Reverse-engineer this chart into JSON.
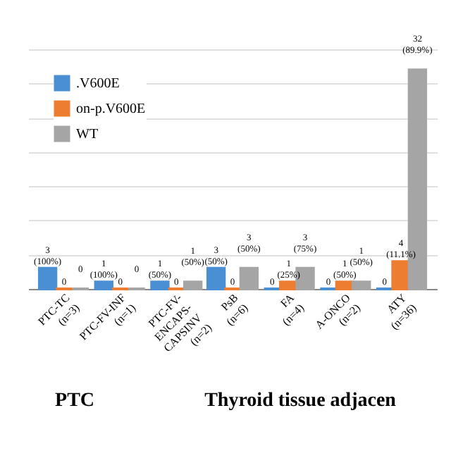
{
  "chart_data": {
    "type": "bar",
    "categories": [
      "PTC-TC (n=3)",
      "PTC-FV-INF (n=1)",
      "PTC-FV-ENCAPS-CAPSINV (n=2)",
      "PsB (n=6)",
      "FA (n=4)",
      "A-ONCO (n=2)",
      "ATY (n=36)"
    ],
    "series": [
      {
        "name": ".V600E",
        "color": "#4a8fd4",
        "values": [
          3,
          1,
          1,
          3,
          0,
          0,
          0
        ],
        "value_labels": [
          "3 (100%)",
          "1 (100%)",
          "1 (50%)",
          "3 (50%)",
          "0",
          "0",
          "0"
        ]
      },
      {
        "name": "on-p.V600E",
        "color": "#ed7d31",
        "values": [
          0,
          0,
          0,
          0,
          1,
          1,
          4
        ],
        "value_labels": [
          "0",
          "0",
          "0",
          "0",
          "1 (25%)",
          "1 (50%)",
          "4 (11.1%)"
        ]
      },
      {
        "name": "WT",
        "color": "#a5a5a5",
        "values": [
          0,
          0,
          1,
          3,
          3,
          1,
          32
        ],
        "value_labels": [
          "0",
          "0",
          "1 (50%)",
          "3 (50%)",
          "3 (75%)",
          "1 (50%)",
          "32 (89.9%)"
        ]
      }
    ],
    "grid": "y",
    "legend": "top left",
    "tick_labels": "x",
    "annotations": [
      "PTC",
      "Thyroid tissue adjacen"
    ]
  }
}
